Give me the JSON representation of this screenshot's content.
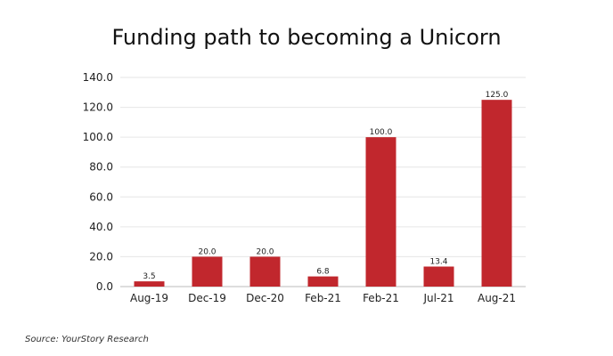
{
  "chart_data": {
    "type": "bar",
    "title": "Funding path to becoming a Unicorn",
    "categories": [
      "Aug-19",
      "Dec-19",
      "Dec-20",
      "Feb-21",
      "Feb-21",
      "Jul-21",
      "Aug-21"
    ],
    "values": [
      3.5,
      20.0,
      20.0,
      6.8,
      100.0,
      13.4,
      125.0
    ],
    "value_labels": [
      "3.5",
      "20.0",
      "20.0",
      "6.8",
      "100.0",
      "13.4",
      "125.0"
    ],
    "y_ticks": [
      0,
      20,
      40,
      60,
      80,
      100,
      120,
      140
    ],
    "y_tick_labels": [
      "0.0",
      "20.0",
      "40.0",
      "60.0",
      "80.0",
      "100.0",
      "120.0",
      "140.0"
    ],
    "ylim": [
      0,
      140
    ],
    "grid": true,
    "bar_color": "#c1272d",
    "legend": "none"
  },
  "source": "Source: YourStory Research"
}
